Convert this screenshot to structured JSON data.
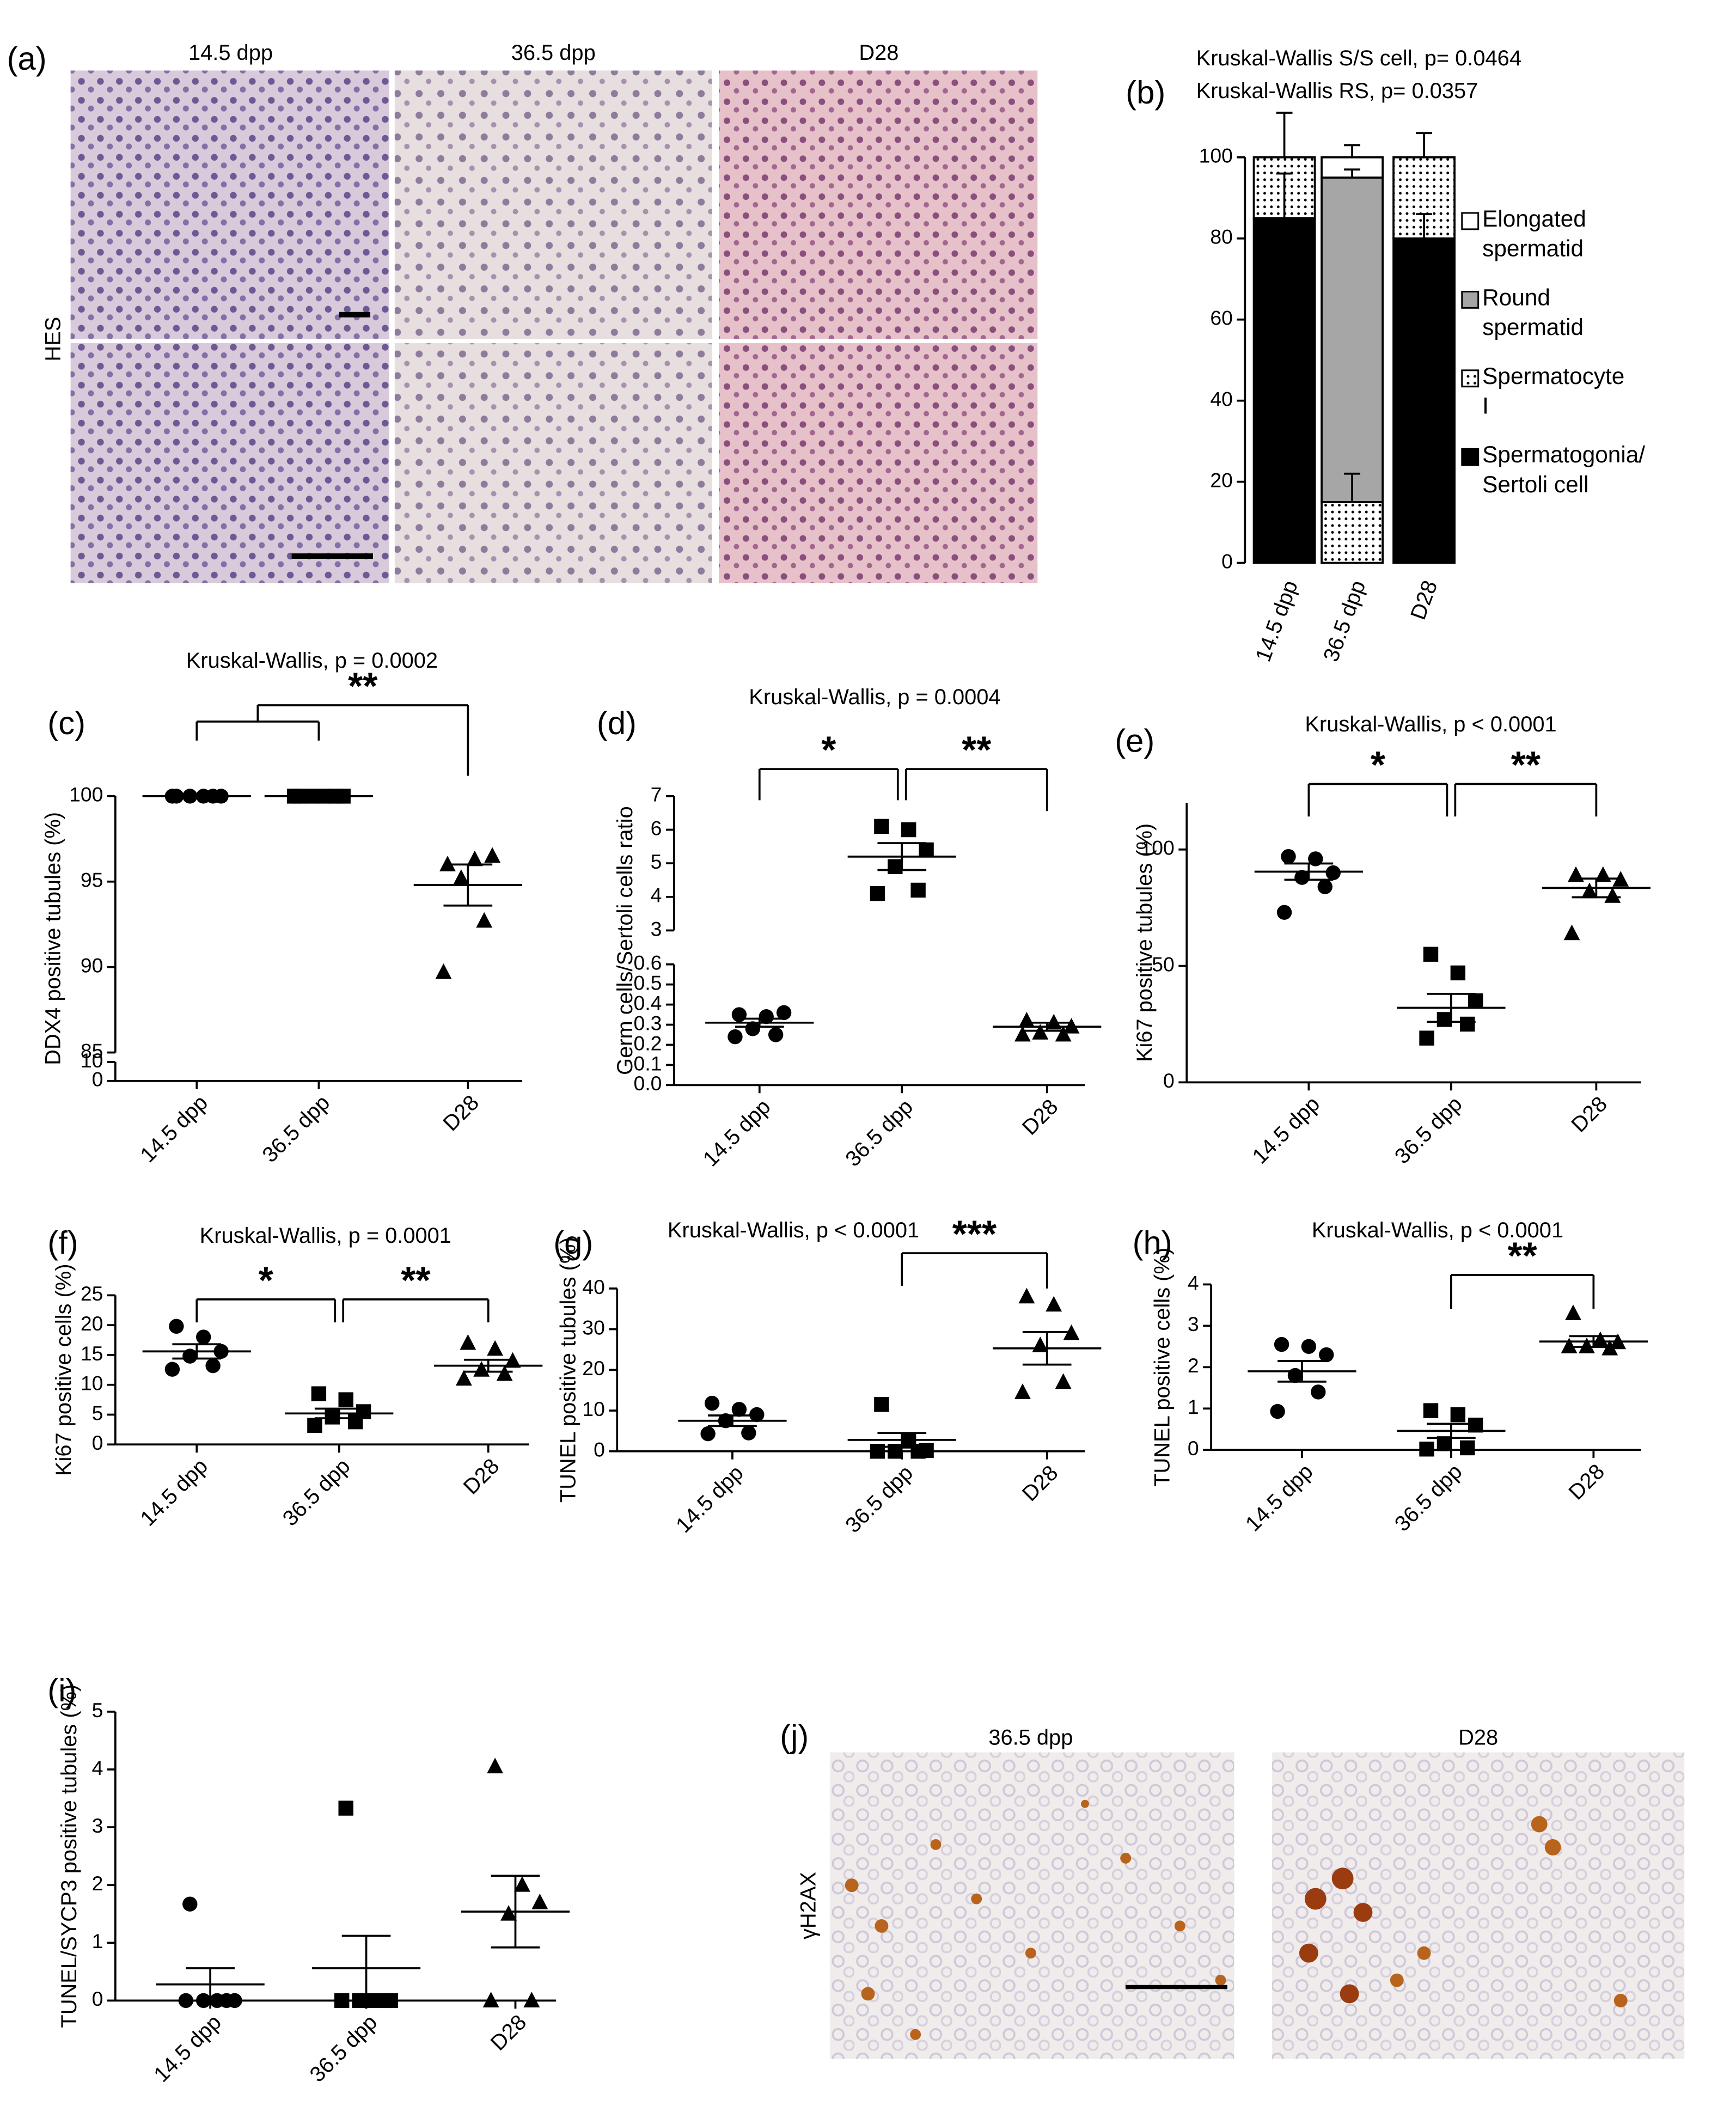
{
  "micrographs": [
    {
      "panel": "(a)",
      "columns": [
        "14.5 dpp",
        "36.5 dpp",
        "D28"
      ],
      "row_label": "HES"
    },
    {
      "panel": "(j)",
      "columns": [
        "36.5 dpp",
        "D28"
      ],
      "row_label": "γH2AX"
    }
  ],
  "chart_data": [
    {
      "type": "stacked_bar",
      "panel": "(b)",
      "title": "Kruskal-Wallis S/S cell, p= 0.0464",
      "subtitle": "Kruskal-Wallis RS, p= 0.0357",
      "categories": [
        "14.5 dpp",
        "36.5 dpp",
        "D28"
      ],
      "series": [
        {
          "name": "Spermatogonia/ Sertoli cell",
          "color": "#000000",
          "values": [
            85,
            0,
            80
          ],
          "errors": [
            11,
            null,
            6
          ]
        },
        {
          "name": "Spermatocyte I",
          "color": "#ffffff",
          "hatch": "dots",
          "values": [
            15,
            15,
            20
          ],
          "errors": [
            11,
            7,
            6
          ]
        },
        {
          "name": "Round spermatid",
          "color": "#a6a6a6",
          "values": [
            0,
            80,
            0
          ],
          "errors": [
            null,
            2,
            null
          ]
        },
        {
          "name": "Elongated spermatid",
          "color": "#ffffff",
          "values": [
            0,
            5,
            0
          ],
          "errors": [
            null,
            3,
            null
          ]
        }
      ],
      "ylim": [
        0,
        100
      ],
      "yticks": [
        0,
        20,
        40,
        60,
        80,
        100
      ]
    },
    {
      "type": "scatter",
      "panel": "(c)",
      "title": "Kruskal-Wallis, p = 0.0002",
      "ylabel": "DDX4 positive tubules (%)",
      "categories": [
        "14.5 dpp",
        "36.5 dpp",
        "D28"
      ],
      "markers": [
        "circle",
        "square",
        "triangle"
      ],
      "points": [
        [
          100,
          100,
          100,
          100,
          100,
          100
        ],
        [
          100,
          100,
          100,
          100,
          100,
          100
        ],
        [
          96,
          96.3,
          96.5,
          95.2,
          92.7,
          89.7
        ]
      ],
      "means": [
        100,
        100,
        94.8
      ],
      "sems": [
        0,
        0,
        1.2
      ],
      "y_segments": [
        {
          "ylim": [
            0,
            10
          ],
          "yticks": [
            0,
            10
          ]
        },
        {
          "ylim": [
            85,
            100
          ],
          "yticks": [
            85,
            90,
            95,
            100
          ]
        }
      ],
      "significance": [
        {
          "from": [
            0,
            1
          ],
          "to": [
            2
          ],
          "label": "**"
        }
      ]
    },
    {
      "type": "scatter",
      "panel": "(d)",
      "title": "Kruskal-Wallis, p = 0.0004",
      "ylabel": "Germ cells/Sertoli cells ratio",
      "categories": [
        "14.5 dpp",
        "36.5 dpp",
        "D28"
      ],
      "markers": [
        "circle",
        "square",
        "triangle"
      ],
      "points": [
        [
          0.35,
          0.34,
          0.36,
          0.28,
          0.25,
          0.24
        ],
        [
          6.1,
          6.0,
          5.4,
          4.9,
          4.2,
          4.1
        ],
        [
          0.32,
          0.31,
          0.29,
          0.26,
          0.25,
          0.25
        ]
      ],
      "means": [
        0.31,
        5.2,
        0.29
      ],
      "sems": [
        0.02,
        0.4,
        0.02
      ],
      "y_segments": [
        {
          "ylim": [
            0,
            0.6
          ],
          "yticks": [
            {
              "value": 0,
              "label": "0.0"
            },
            0.1,
            0.2,
            0.3,
            0.4,
            0.5,
            0.6
          ]
        },
        {
          "ylim": [
            3,
            7
          ],
          "yticks": [
            3,
            4,
            5,
            6,
            7
          ]
        }
      ],
      "significance": [
        {
          "from": [
            0
          ],
          "to": [
            1
          ],
          "label": "*"
        },
        {
          "from": [
            1
          ],
          "to": [
            2
          ],
          "label": "**"
        }
      ]
    },
    {
      "type": "scatter",
      "panel": "(e)",
      "title": "Kruskal-Wallis, p < 0.0001",
      "ylabel": "Ki67 positive tubules (%)",
      "categories": [
        "14.5 dpp",
        "36.5 dpp",
        "D28"
      ],
      "markers": [
        "circle",
        "square",
        "triangle"
      ],
      "points": [
        [
          97,
          96,
          90,
          88,
          84,
          73
        ],
        [
          55,
          47,
          35,
          27,
          25,
          19
        ],
        [
          89,
          89,
          87,
          82,
          80,
          64
        ]
      ],
      "means": [
        90.5,
        32,
        83.5
      ],
      "sems": [
        3.5,
        6,
        4
      ],
      "ylim": [
        0,
        120
      ],
      "yticks": [
        0,
        50,
        100
      ],
      "significance": [
        {
          "from": [
            0
          ],
          "to": [
            1
          ],
          "label": "*"
        },
        {
          "from": [
            1
          ],
          "to": [
            2
          ],
          "label": "**"
        }
      ]
    },
    {
      "type": "scatter",
      "panel": "(f)",
      "title": "Kruskal-Wallis, p = 0.0001",
      "ylabel": "Ki67 positive cells (%)",
      "categories": [
        "14.5 dpp",
        "36.5 dpp",
        "D28"
      ],
      "markers": [
        "circle",
        "square",
        "triangle"
      ],
      "points": [
        [
          19.8,
          18,
          15.6,
          14.8,
          13.2,
          12.6
        ],
        [
          8.5,
          7.5,
          5.5,
          4.6,
          3.8,
          3.2
        ],
        [
          17,
          16,
          14,
          12.5,
          11.8,
          11
        ]
      ],
      "means": [
        15.6,
        5.2,
        13.2
      ],
      "sems": [
        1.2,
        0.8,
        1
      ],
      "ylim": [
        0,
        25
      ],
      "yticks": [
        0,
        5,
        10,
        15,
        20,
        25
      ],
      "significance": [
        {
          "from": [
            0
          ],
          "to": [
            1
          ],
          "label": "*"
        },
        {
          "from": [
            1
          ],
          "to": [
            2
          ],
          "label": "**"
        }
      ]
    },
    {
      "type": "scatter",
      "panel": "(g)",
      "title": "Kruskal-Wallis, p < 0.0001",
      "ylabel": "TUNEL positive tubules (%)",
      "categories": [
        "14.5 dpp",
        "36.5 dpp",
        "D28"
      ],
      "markers": [
        "circle",
        "square",
        "triangle"
      ],
      "points": [
        [
          11.8,
          10.3,
          9.0,
          7.5,
          4.5,
          4.3
        ],
        [
          11.5,
          2.5,
          0.2,
          0,
          0,
          0
        ],
        [
          38,
          36,
          29,
          26,
          17,
          14.5
        ]
      ],
      "means": [
        7.5,
        2.8,
        25.3
      ],
      "sems": [
        1.3,
        1.7,
        4
      ],
      "ylim": [
        0,
        40
      ],
      "yticks": [
        0,
        10,
        20,
        30,
        40
      ],
      "significance": [
        {
          "from": [
            1
          ],
          "to": [
            2
          ],
          "label": "***"
        }
      ]
    },
    {
      "type": "scatter",
      "panel": "(h)",
      "title": "Kruskal-Wallis, p < 0.0001",
      "ylabel": "TUNEL positive cells (%)",
      "categories": [
        "14.5 dpp",
        "36.5 dpp",
        "D28"
      ],
      "markers": [
        "circle",
        "square",
        "triangle"
      ],
      "points": [
        [
          2.55,
          2.5,
          2.3,
          1.8,
          1.4,
          0.93
        ],
        [
          0.95,
          0.85,
          0.6,
          0.15,
          0.05,
          0.02
        ],
        [
          3.3,
          2.65,
          2.6,
          2.5,
          2.45,
          2.5
        ]
      ],
      "means": [
        1.9,
        0.46,
        2.62
      ],
      "sems": [
        0.25,
        0.17,
        0.13
      ],
      "ylim": [
        0,
        4
      ],
      "yticks": [
        0,
        1,
        2,
        3,
        4
      ],
      "significance": [
        {
          "from": [
            1
          ],
          "to": [
            2
          ],
          "label": "**"
        }
      ]
    },
    {
      "type": "scatter",
      "panel": "(i)",
      "ylabel": "TUNEL/SYCP3 positive tubules (%)",
      "categories": [
        "14.5 dpp",
        "36.5 dpp",
        "D28"
      ],
      "markers": [
        "circle",
        "square",
        "triangle"
      ],
      "points": [
        [
          1.67,
          0,
          0,
          0,
          0,
          0
        ],
        [
          3.33,
          0,
          0,
          0,
          0,
          0
        ],
        [
          4.05,
          2.0,
          1.7,
          1.5,
          0,
          0
        ]
      ],
      "means": [
        0.28,
        0.56,
        1.54
      ],
      "sems": [
        0.28,
        0.56,
        0.62
      ],
      "ylim": [
        0,
        5
      ],
      "yticks": [
        0,
        1,
        2,
        3,
        4,
        5
      ]
    }
  ]
}
